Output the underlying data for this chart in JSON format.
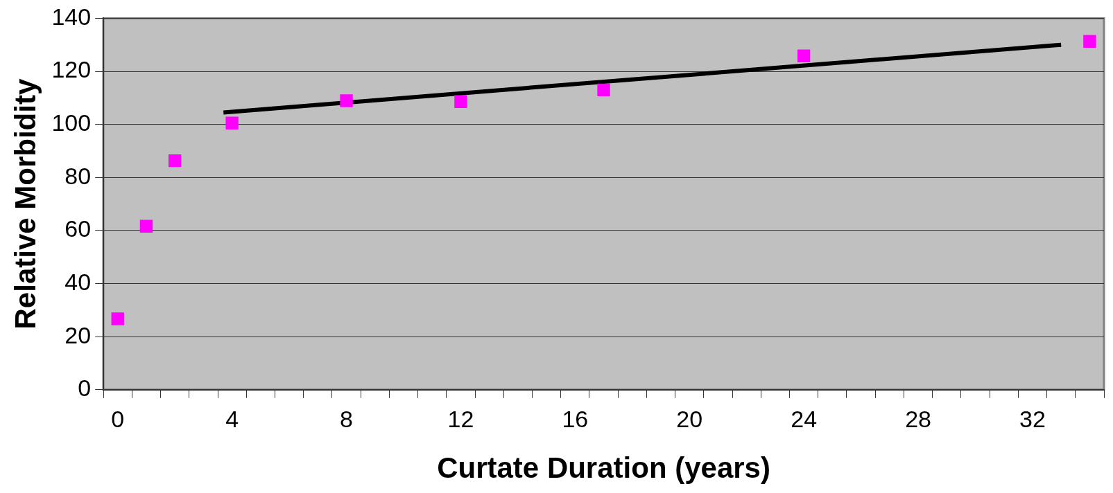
{
  "chart_data": {
    "type": "scatter",
    "xlabel": "Curtate Duration (years)",
    "ylabel": "Relative Morbidity",
    "xlim": [
      -0.5,
      34.5
    ],
    "ylim": [
      0,
      140
    ],
    "xticks": [
      {
        "value": -0.5,
        "label": null
      },
      0,
      {
        "value": 0.5,
        "label": null
      },
      {
        "value": 1.5,
        "label": null
      },
      {
        "value": 2.5,
        "label": null
      },
      {
        "value": 3.5,
        "label": null
      },
      4,
      {
        "value": 4.5,
        "label": null
      },
      {
        "value": 5.5,
        "label": null
      },
      {
        "value": 6.5,
        "label": null
      },
      {
        "value": 7.5,
        "label": null
      },
      8,
      {
        "value": 8.5,
        "label": null
      },
      {
        "value": 9.5,
        "label": null
      },
      {
        "value": 10.5,
        "label": null
      },
      {
        "value": 11.5,
        "label": null
      },
      12,
      {
        "value": 12.5,
        "label": null
      },
      {
        "value": 13.5,
        "label": null
      },
      {
        "value": 14.5,
        "label": null
      },
      {
        "value": 15.5,
        "label": null
      },
      16,
      {
        "value": 16.5,
        "label": null
      },
      {
        "value": 17.5,
        "label": null
      },
      {
        "value": 18.5,
        "label": null
      },
      {
        "value": 19.5,
        "label": null
      },
      20,
      {
        "value": 20.5,
        "label": null
      },
      {
        "value": 21.5,
        "label": null
      },
      {
        "value": 22.5,
        "label": null
      },
      {
        "value": 23.5,
        "label": null
      },
      24,
      {
        "value": 24.5,
        "label": null
      },
      {
        "value": 25.5,
        "label": null
      },
      {
        "value": 26.5,
        "label": null
      },
      {
        "value": 27.5,
        "label": null
      },
      28,
      {
        "value": 28.5,
        "label": null
      },
      {
        "value": 29.5,
        "label": null
      },
      {
        "value": 30.5,
        "label": null
      },
      {
        "value": 31.5,
        "label": null
      },
      32,
      {
        "value": 32.5,
        "label": null
      },
      {
        "value": 33.5,
        "label": null
      },
      {
        "value": 34.5,
        "label": null
      }
    ],
    "yticks": [
      0,
      20,
      40,
      60,
      80,
      100,
      120,
      140
    ],
    "grid": "y",
    "legend": false,
    "marker": "square",
    "series": [
      {
        "color": "#ff00ff",
        "x": [
          0,
          1,
          2,
          4,
          8,
          12,
          17,
          24,
          34
        ],
        "values": [
          26.7,
          61.6,
          86.3,
          100.5,
          108.9,
          108.6,
          113,
          125.8,
          131.3
        ]
      },
      {
        "type": "line",
        "color": "#000000",
        "marker": "none",
        "x": [
          3.7,
          33
        ],
        "values": [
          104.5,
          130
        ]
      }
    ]
  }
}
